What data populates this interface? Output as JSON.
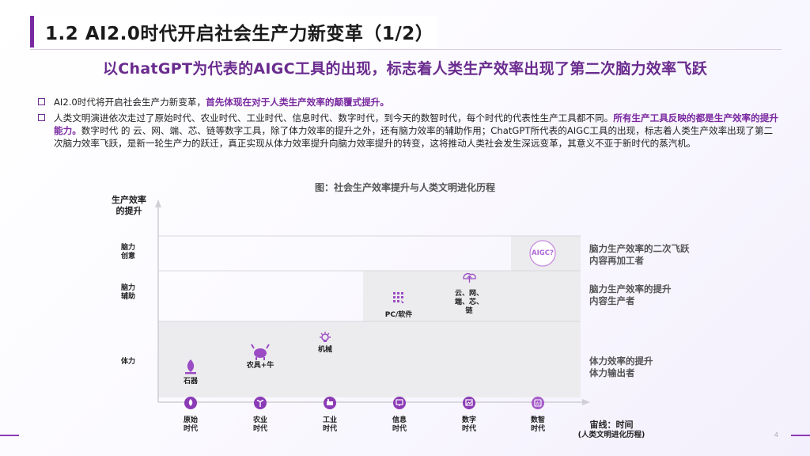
{
  "header": {
    "title": "1.2 AI2.0时代开启社会生产力新变革（1/2）",
    "subtitle": "以ChatGPT为代表的AIGC工具的出现，标志着人类生产效率出现了第二次脑力效率飞跃"
  },
  "bullets": {
    "b1_plain": "AI2.0时代将开启社会生产力新变革，",
    "b1_bold": "首先体现在对于人类生产效率的颠覆式提升。",
    "b2_part1": "人类文明演进依次走过了原始时代、农业时代、工业时代、信息时代、数字时代，到今天的数智时代，每个时代的代表性生产工具都不同。",
    "b2_bold": "所有生产工具反映的都是生产效率的提升能力。",
    "b2_part2": "数字时代 的 云、网、端、芯、链等数字工具，除了体力效率的提升之外，还有脑力效率的辅助作用；ChatGPT所代表的AIGC工具的出现，标志着人类生产效率出现了第二次脑力效率飞跃，是新一轮生产力的跃迁，真正实现从体力效率提升向脑力效率提升的转变，这将推动人类社会发生深远变革，其意义不亚于新时代的蒸汽机。"
  },
  "figure": {
    "caption": "图：社会生产效率提升与人类文明进化历程",
    "y_axis_line1": "生产效率",
    "y_axis_line2": "的提升",
    "levels": [
      {
        "line1": "脑力",
        "line2": "创意"
      },
      {
        "line1": "脑力",
        "line2": "辅助"
      },
      {
        "line1": "体力",
        "line2": ""
      }
    ],
    "eras": [
      {
        "line1": "原始",
        "line2": "时代",
        "icon": "flame-icon"
      },
      {
        "line1": "农业",
        "line2": "时代",
        "icon": "sprout-icon"
      },
      {
        "line1": "工业",
        "line2": "时代",
        "icon": "factory-icon"
      },
      {
        "line1": "信息",
        "line2": "时代",
        "icon": "monitor-icon"
      },
      {
        "line1": "数字",
        "line2": "时代",
        "icon": "image-icon"
      },
      {
        "line1": "数智",
        "line2": "时代",
        "icon": "ai-chip-icon"
      }
    ],
    "tools": {
      "stone": "石器",
      "farm": "农具+牛",
      "machine": "机械",
      "pc": "PC/软件",
      "cloud_line1": "云、网、",
      "cloud_line2": "端、芯、",
      "cloud_line3": "链",
      "aigc": "AIGC?"
    },
    "notes": [
      {
        "line1": "脑力生产效率的二次飞跃",
        "line2": "内容再加工者"
      },
      {
        "line1": "脑力生产效率的提升",
        "line2": "内容生产者"
      },
      {
        "line1": "体力效率的提升",
        "line2": "体力输出者"
      }
    ],
    "x_axis_line1": "宙线：时间",
    "x_axis_line2": "(人类文明进化历程)"
  },
  "footer": {
    "page": "4"
  },
  "colors": {
    "accent": "#7a2aa0",
    "accent_light": "#a45bc9",
    "band": "#ececee"
  }
}
